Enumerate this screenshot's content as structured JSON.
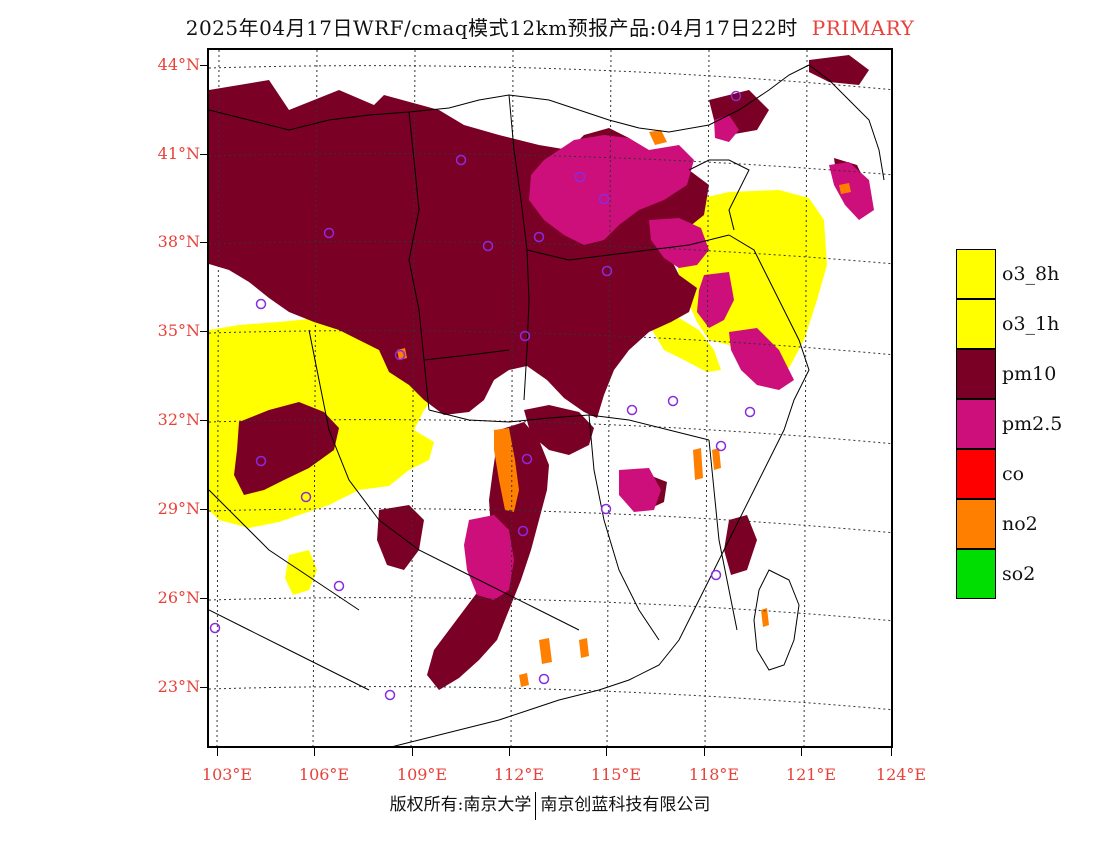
{
  "title": {
    "text": "2025年04月17日WRF/cmaq模式12km预报产品:04月17日22时",
    "tag": "PRIMARY"
  },
  "map": {
    "lat_labels": [
      "44°N",
      "41°N",
      "38°N",
      "35°N",
      "32°N",
      "29°N",
      "26°N",
      "23°N"
    ],
    "lon_labels": [
      "103°E",
      "106°E",
      "109°E",
      "112°E",
      "115°E",
      "118°E",
      "121°E",
      "124°E"
    ]
  },
  "legend": {
    "items": [
      {
        "label": "o3_8h",
        "color": "#ffff00"
      },
      {
        "label": "o3_1h",
        "color": "#ffff00"
      },
      {
        "label": "pm10",
        "color": "#7b0026"
      },
      {
        "label": "pm2.5",
        "color": "#cc0f7a"
      },
      {
        "label": "co",
        "color": "#ff0000"
      },
      {
        "label": "no2",
        "color": "#ff7f00"
      },
      {
        "label": "so2",
        "color": "#00dd00"
      }
    ]
  },
  "footer": {
    "left": "版权所有:南京大学",
    "right": "南京创蓝科技有限公司"
  }
}
